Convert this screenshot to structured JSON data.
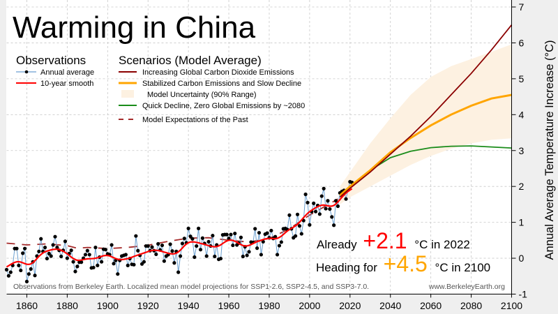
{
  "chart_data": {
    "type": "line",
    "title": "Warming in China",
    "ylabel": "Annual Average Temperature Increase (°C)",
    "xlabel": "",
    "xlim": [
      1850,
      2100
    ],
    "ylim": [
      -1,
      7
    ],
    "x_ticks": [
      1860,
      1880,
      1900,
      1920,
      1940,
      1960,
      1980,
      2000,
      2020,
      2040,
      2060,
      2080,
      2100
    ],
    "y_ticks": [
      -1,
      0,
      1,
      2,
      3,
      4,
      5,
      6,
      7
    ],
    "grid": true,
    "legend_observations": {
      "heading": "Observations",
      "items": [
        "Annual average",
        "10-year smooth"
      ]
    },
    "legend_scenarios": {
      "heading": "Scenarios (Model Average)",
      "items": [
        "Increasing Global Carbon Dioxide Emissions",
        "Stabilized Carbon Emissions and Slow Decline",
        "Model Uncertainty (90% Range)",
        "Quick Decline, Zero Global Emissions by ~2080",
        "Model Expectations of the Past"
      ]
    },
    "colors": {
      "annual_line": "#6a9fd0",
      "annual_dot": "#000000",
      "smooth": "#ff0000",
      "increasing": "#8b0000",
      "stabilized": "#ffa500",
      "uncertainty": "#fdf1e1",
      "quick_decline": "#1a8c1a",
      "past_expectations": "#a52a2a"
    },
    "annual": {
      "start_year": 1850,
      "values": [
        -0.32,
        -0.49,
        -0.39,
        -0.2,
        0.27,
        0.27,
        -0.2,
        -0.34,
        0.14,
        0.27,
        -0.65,
        -0.44,
        -0.3,
        -0.1,
        -0.48,
        0.06,
        0.19,
        0.54,
        0.19,
        0.3,
        -0.01,
        0.13,
        0.06,
        0.37,
        0.6,
        0.3,
        0.22,
        0.05,
        0.22,
        0.47,
        0.0,
        0.13,
        0.22,
        -0.1,
        -0.37,
        -0.23,
        -0.11,
        -0.11,
        0.0,
        0.1,
        0.21,
        0.1,
        -0.27,
        -0.26,
        0.3,
        -0.2,
        0.03,
        -0.1,
        0.25,
        0.24,
        0.12,
        0.1,
        0.37,
        -0.15,
        -0.06,
        -0.44,
        -0.06,
        0.06,
        0.08,
        0.1,
        -0.2,
        -0.01,
        -0.17,
        -0.18,
        0.62,
        0.21,
        0.08,
        -0.16,
        -0.1,
        0.34,
        0.34,
        0.21,
        0.31,
        0.21,
        0.11,
        0.4,
        0.23,
        0.36,
        -0.08,
        0.06,
        0.1,
        0.39,
        0.2,
        -0.13,
        0.19,
        -0.39,
        0.06,
        0.41,
        0.55,
        0.43,
        0.83,
        0.61,
        0.54,
        0.03,
        0.34,
        0.83,
        0.24,
        0.56,
        0.41,
        0.06,
        0.46,
        0.34,
        0.63,
        0.05,
        0.37,
        -0.03,
        -0.01,
        0.65,
        0.66,
        0.66,
        0.55,
        0.66,
        0.36,
        0.69,
        0.37,
        0.42,
        0.58,
        0.05,
        0.32,
        0.08,
        0.18,
        0.45,
        0.44,
        0.82,
        0.28,
        0.71,
        0.1,
        0.46,
        0.67,
        0.7,
        0.57,
        0.77,
        0.55,
        0.6,
        0.1,
        0.35,
        0.45,
        0.82,
        0.83,
        0.8,
        1.2,
        0.82,
        0.57,
        0.62,
        1.22,
        0.9,
        0.68,
        1.05,
        1.78,
        1.55,
        0.93,
        1.3,
        1.53,
        1.3,
        1.47,
        1.23,
        1.73,
        1.94,
        1.38,
        1.6,
        1.37,
        1.15,
        0.92,
        1.6,
        1.45,
        1.82,
        1.86,
        1.89,
        1.65,
        1.9,
        2.13,
        2.11
      ]
    },
    "past_expectations": {
      "x": [
        1850,
        1860,
        1870,
        1880,
        1885,
        1890,
        1900,
        1910,
        1920,
        1930,
        1940,
        1950,
        1960,
        1970,
        1980,
        1990,
        2000,
        2014
      ],
      "y": [
        0.42,
        0.37,
        0.4,
        0.35,
        0.28,
        0.3,
        0.27,
        0.3,
        0.36,
        0.47,
        0.56,
        0.57,
        0.5,
        0.45,
        0.55,
        0.82,
        1.2,
        1.65
      ]
    },
    "scenarios": {
      "x": [
        2015,
        2020,
        2030,
        2040,
        2050,
        2060,
        2070,
        2080,
        2090,
        2100
      ],
      "increasing": [
        1.7,
        1.95,
        2.4,
        2.9,
        3.4,
        3.95,
        4.55,
        5.15,
        5.8,
        6.5
      ],
      "stabilized": [
        1.75,
        2.0,
        2.45,
        2.95,
        3.35,
        3.7,
        4.0,
        4.25,
        4.45,
        4.55
      ],
      "quick_decline": [
        1.75,
        2.0,
        2.45,
        2.8,
        2.98,
        3.08,
        3.12,
        3.13,
        3.1,
        3.07
      ],
      "uncertainty_low": [
        1.5,
        1.7,
        2.0,
        2.3,
        2.6,
        2.85,
        3.05,
        3.2,
        3.3,
        3.34
      ],
      "uncertainty_high": [
        2.0,
        2.4,
        3.2,
        3.9,
        4.55,
        5.05,
        5.35,
        5.55,
        5.75,
        5.96
      ]
    },
    "annotations": {
      "already_prefix": "Already",
      "already_value": "+2.1",
      "already_suffix": "°C in 2022",
      "heading_prefix": "Heading for",
      "heading_value": "+4.5",
      "heading_suffix": "°C in 2100",
      "footer_note": "Observations from Berkeley Earth. Localized mean model projections for SSP1-2.6, SSP2-4.5, and SSP3-7.0.",
      "footer_url": "www.BerkeleyEarth.org"
    }
  }
}
